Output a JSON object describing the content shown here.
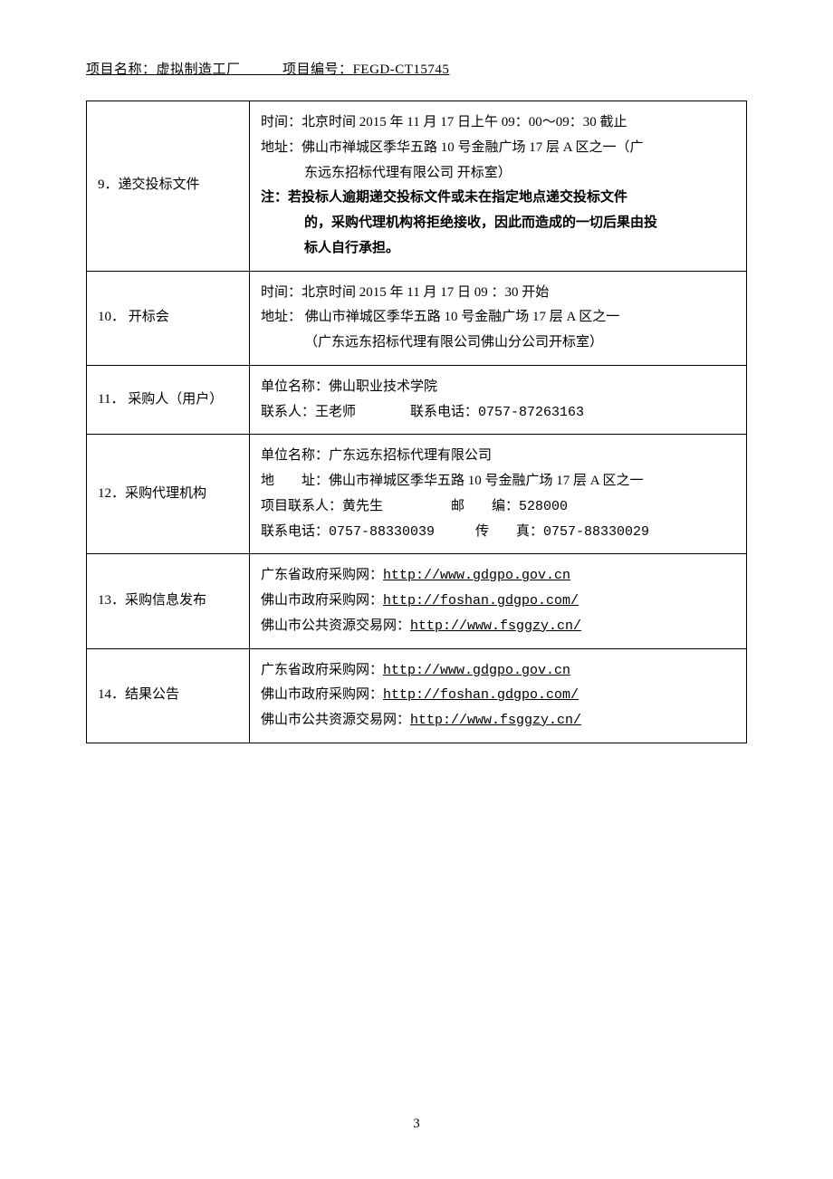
{
  "header": {
    "project_name_label": "项目名称：",
    "project_name_value": "虚拟制造工厂",
    "project_code_label": "项目编号：",
    "project_code_value": "FEGD-CT15745",
    "spacer": "　　　"
  },
  "rows": {
    "r9": {
      "label": "9．递交投标文件",
      "time": "时间：北京时间 2015 年 11 月 17 日上午 09：00～09：30 截止",
      "addr1": "地址：佛山市禅城区季华五路 10 号金融广场 17 层 A 区之一（广",
      "addr2": "东远东招标代理有限公司 开标室）",
      "note1": "注：若投标人逾期递交投标文件或未在指定地点递交投标文件",
      "note2": "的，采购代理机构将拒绝接收，因此而造成的一切后果由投",
      "note3": "标人自行承担。"
    },
    "r10": {
      "label": "10．  开标会",
      "time": "时间：北京时间 2015 年 11 月 17 日  09 ：30 开始",
      "addr1": "地址： 佛山市禅城区季华五路 10 号金融广场 17 层 A 区之一",
      "addr2": "（广东远东招标代理有限公司佛山分公司开标室）"
    },
    "r11": {
      "label": "11．  采购人（用户）",
      "org": "单位名称：佛山职业技术学院",
      "contact": "联系人：王老师　　　　联系电话：0757-87263163"
    },
    "r12": {
      "label": "12．采购代理机构",
      "org": "单位名称：广东远东招标代理有限公司",
      "addr": "地　　址：佛山市禅城区季华五路 10 号金融广场 17 层 A 区之一",
      "contact": "项目联系人：黄先生　　　　　邮　　编：528000",
      "phone": "联系电话：0757-88330039　　　传　　真：0757-88330029"
    },
    "r13": {
      "label": "13．采购信息发布",
      "site1_label": "广东省政府采购网：",
      "site1_url": "http://www.gdgpo.gov.cn",
      "site2_label": "佛山市政府采购网：",
      "site2_url": "http://foshan.gdgpo.com/",
      "site3_label": "佛山市公共资源交易网：",
      "site3_url": "http://www.fsggzy.cn/"
    },
    "r14": {
      "label": "14．结果公告",
      "site1_label": "广东省政府采购网：",
      "site1_url": "http://www.gdgpo.gov.cn",
      "site2_label": "佛山市政府采购网：",
      "site2_url": "http://foshan.gdgpo.com/",
      "site3_label": "佛山市公共资源交易网：",
      "site3_url": "http://www.fsggzy.cn/"
    }
  },
  "page_number": "3"
}
